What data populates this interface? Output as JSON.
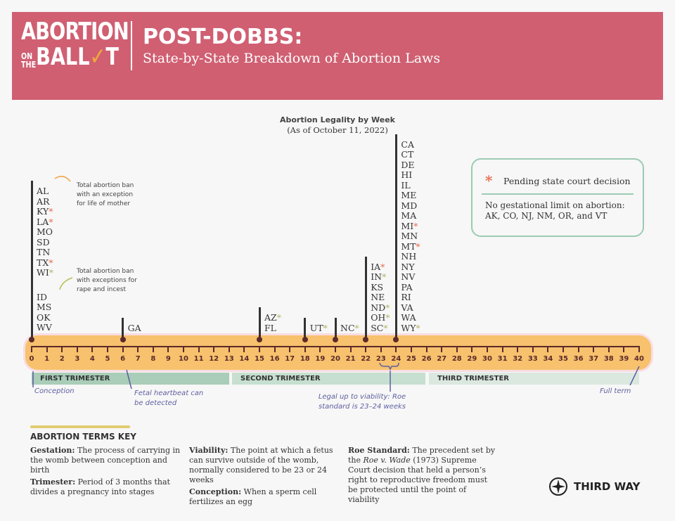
{
  "header": {
    "logo_text": "ABORTION ON THE BALLOT",
    "title": "POST-DOBBS:",
    "subtitle": "State-by-State Breakdown of Abortion Laws",
    "color": "#d05f72"
  },
  "chart": {
    "title": "Abortion Legality by Week",
    "date": "(As of October 11, 2022)",
    "weeks": [
      0,
      1,
      2,
      3,
      4,
      5,
      6,
      7,
      8,
      9,
      10,
      11,
      12,
      13,
      14,
      15,
      16,
      17,
      18,
      19,
      20,
      21,
      22,
      23,
      24,
      25,
      26,
      27,
      28,
      29,
      30,
      31,
      32,
      33,
      34,
      35,
      36,
      37,
      38,
      39,
      40
    ],
    "markers": [
      {
        "week": 0,
        "groups": [
          [
            {
              "s": "AL"
            },
            {
              "s": "AR"
            },
            {
              "s": "KY",
              "a": "o"
            },
            {
              "s": "LA",
              "a": "o"
            },
            {
              "s": "MO"
            },
            {
              "s": "SD"
            },
            {
              "s": "TN"
            },
            {
              "s": "TX",
              "a": "o"
            },
            {
              "s": "WI",
              "a": "g"
            }
          ],
          [
            {
              "s": "ID"
            },
            {
              "s": "MS"
            },
            {
              "s": "OK"
            },
            {
              "s": "WV"
            }
          ]
        ]
      },
      {
        "week": 6,
        "groups": [
          [
            {
              "s": "GA"
            }
          ]
        ]
      },
      {
        "week": 15,
        "groups": [
          [
            {
              "s": "AZ",
              "a": "g"
            },
            {
              "s": "FL"
            }
          ]
        ]
      },
      {
        "week": 18,
        "groups": [
          [
            {
              "s": "UT",
              "a": "g"
            }
          ]
        ]
      },
      {
        "week": 20,
        "groups": [
          [
            {
              "s": "NC",
              "a": "g"
            }
          ]
        ]
      },
      {
        "week": 22,
        "groups": [
          [
            {
              "s": "IA",
              "a": "o"
            },
            {
              "s": "IN",
              "a": "g"
            },
            {
              "s": "KS"
            },
            {
              "s": "NE"
            },
            {
              "s": "ND",
              "a": "g"
            },
            {
              "s": "OH",
              "a": "g"
            },
            {
              "s": "SC",
              "a": "g"
            }
          ]
        ]
      },
      {
        "week": 24,
        "groups": [
          [
            {
              "s": "CA"
            },
            {
              "s": "CT"
            },
            {
              "s": "DE"
            },
            {
              "s": "HI"
            },
            {
              "s": "IL"
            },
            {
              "s": "ME"
            },
            {
              "s": "MD"
            },
            {
              "s": "MA"
            },
            {
              "s": "MI",
              "a": "o"
            },
            {
              "s": "MN"
            },
            {
              "s": "MT",
              "a": "o"
            },
            {
              "s": "NH"
            },
            {
              "s": "NY"
            },
            {
              "s": "NV"
            },
            {
              "s": "PA"
            },
            {
              "s": "RI"
            },
            {
              "s": "VA"
            },
            {
              "s": "WA"
            },
            {
              "s": "WY",
              "a": "g"
            }
          ]
        ]
      }
    ],
    "trimesters": [
      "FIRST TRIMESTER",
      "SECOND TRIMESTER",
      "THIRD TRIMESTER"
    ],
    "notes": {
      "ban_life": "Total abortion ban with an exception for life of mother",
      "ban_rape": "Total abortion ban with exceptions for rape and incest",
      "conception": "Conception",
      "heartbeat": "Fetal heartbeat can be detected",
      "viability": "Legal up to viability: Roe standard is 23–24 weeks",
      "full_term": "Full term"
    },
    "asterisk": "*",
    "asterisk_colors": {
      "o": "#e96a4f",
      "g": "#b4b36b"
    }
  },
  "legend": {
    "pending": "Pending state court decision",
    "no_limit": "No gestational limit on abortion: AK, CO, NJ, NM, OR, and VT"
  },
  "key": {
    "title": "ABORTION TERMS KEY",
    "terms": [
      {
        "term": "Gestation:",
        "def": " The process of carrying in the womb between conception and birth"
      },
      {
        "term": "Trimester:",
        "def": " Period of 3 months that divides a pregnancy into stages"
      },
      {
        "term": "Viability:",
        "def": " The point at which a fetus can survive outside of the womb, normally considered to be 23 or 24 weeks"
      },
      {
        "term": "Conception:",
        "def": " When a sperm cell fertilizes an egg"
      },
      {
        "term": "Roe Standard:",
        "def_pre": " The precedent set by the ",
        "italic": "Roe v. Wade",
        "def": " (1973) Supreme Court decision that held a person’s right to reproductive freedom must be protected until the point of viability"
      }
    ]
  },
  "footer": {
    "brand": "THIRD WAY"
  }
}
